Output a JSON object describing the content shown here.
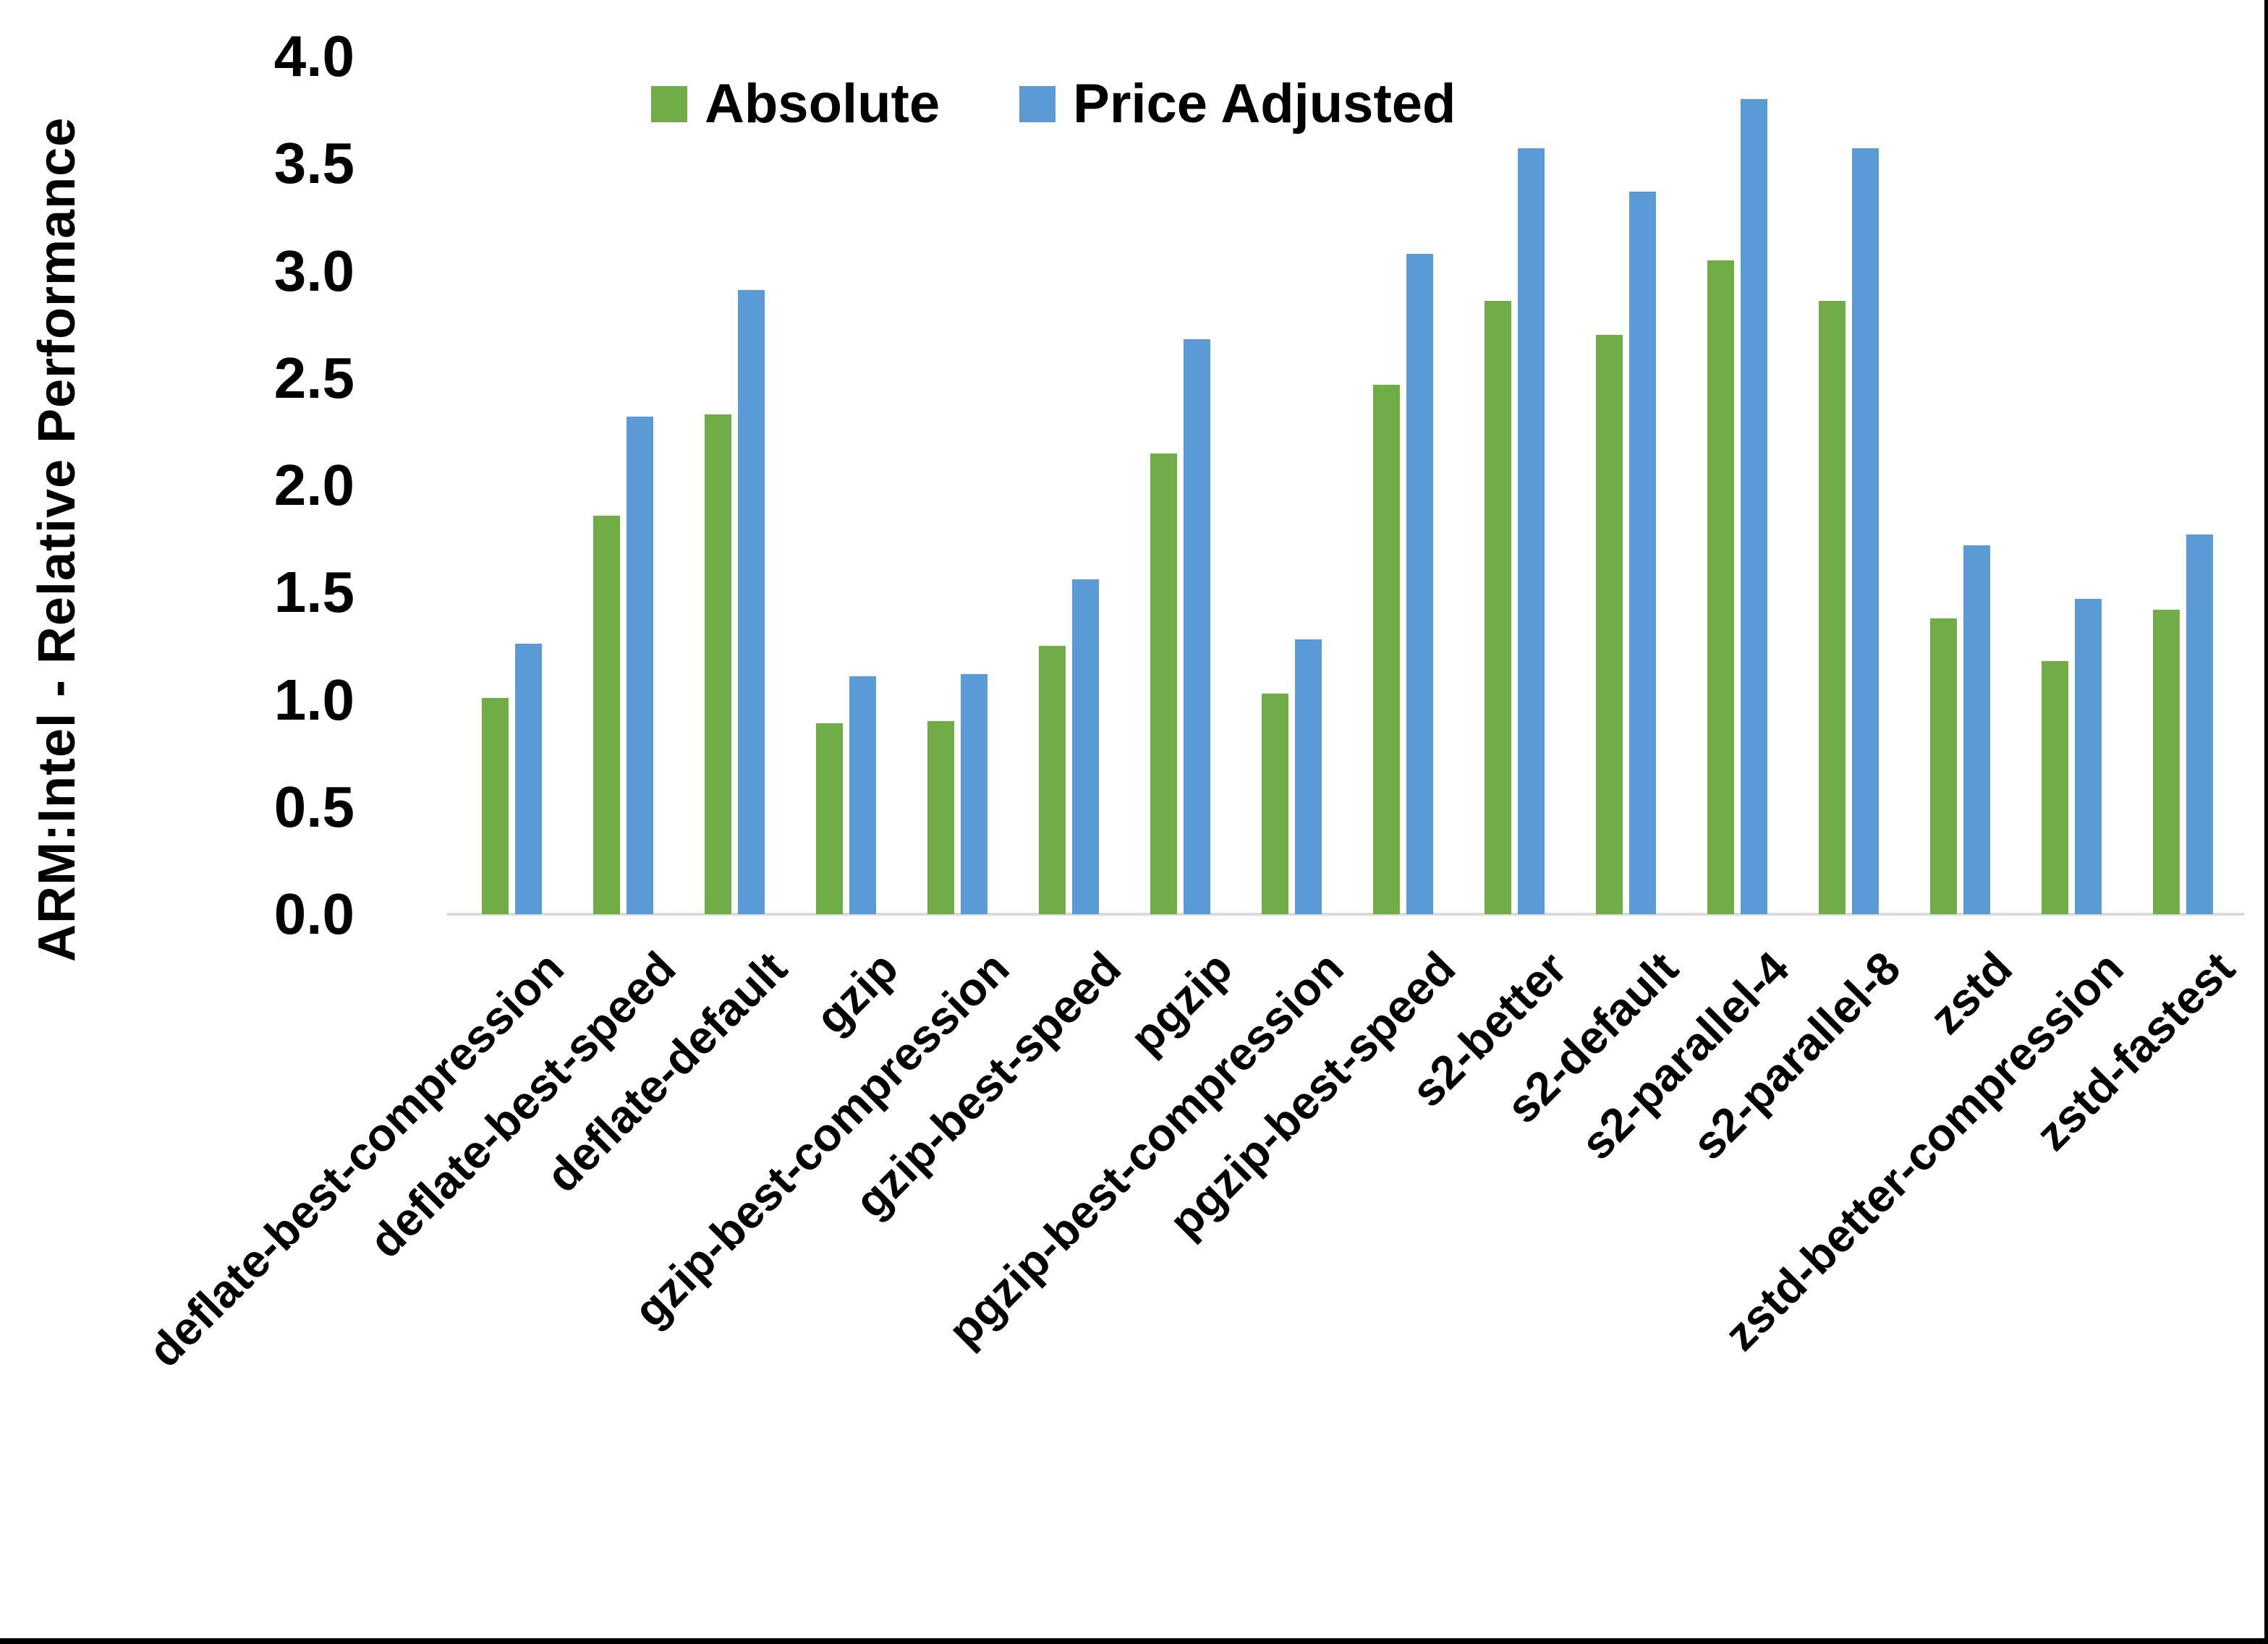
{
  "chart_data": {
    "type": "bar",
    "title": "",
    "xlabel": "",
    "ylabel": "ARM:Intel - Relative Performance",
    "ylim": [
      0.0,
      4.0
    ],
    "ytick_step": 0.5,
    "ytick_labels": [
      "0.0",
      "0.5",
      "1.0",
      "1.5",
      "2.0",
      "2.5",
      "3.0",
      "3.5",
      "4.0"
    ],
    "grid": false,
    "legend_position": "top",
    "axis_line_color": "#d9d9d9",
    "categories": [
      "deflate-best-compression",
      "deflate-best-speed",
      "deflate-default",
      "gzip",
      "gzip-best-compression",
      "gzip-best-speed",
      "pgzip",
      "pgzip-best-compression",
      "pgzip-best-speed",
      "s2-better",
      "s2-default",
      "s2-parallel-4",
      "s2-parallel-8",
      "zstd",
      "zstd-better-compression",
      "zstd-fastest"
    ],
    "series": [
      {
        "name": "Absolute",
        "color": "#70AD47",
        "values": [
          1.01,
          1.86,
          2.33,
          0.89,
          0.9,
          1.25,
          2.15,
          1.03,
          2.47,
          2.86,
          2.7,
          3.05,
          2.86,
          1.38,
          1.18,
          1.42
        ]
      },
      {
        "name": "Price Adjusted",
        "color": "#5B9BD5",
        "values": [
          1.26,
          2.32,
          2.91,
          1.11,
          1.12,
          1.56,
          2.68,
          1.28,
          3.08,
          3.57,
          3.37,
          3.8,
          3.57,
          1.72,
          1.47,
          1.77
        ]
      }
    ]
  }
}
